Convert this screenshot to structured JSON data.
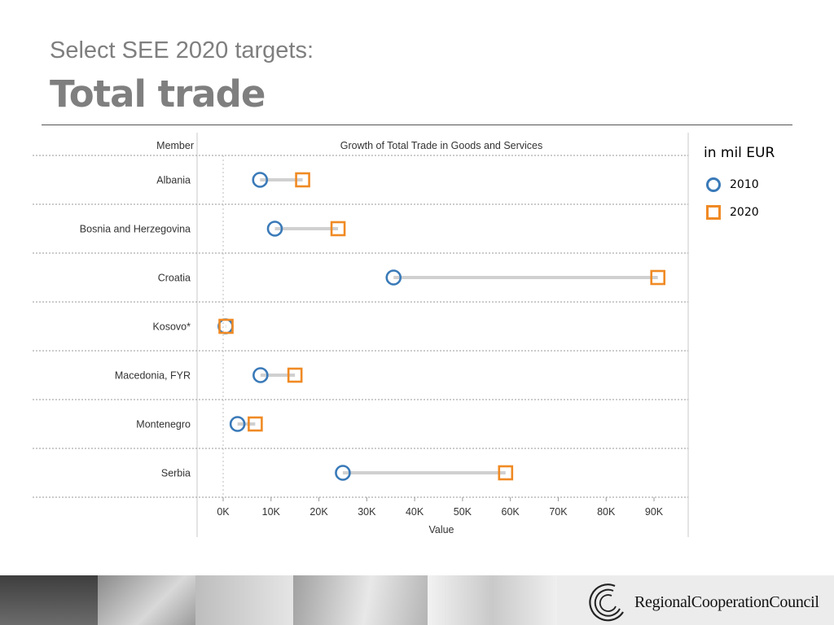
{
  "slide": {
    "subtitle": "Select SEE 2020 targets:",
    "title": "Total trade"
  },
  "chart_data": {
    "type": "dumbbell",
    "title": "Growth of Total Trade in Goods and Services",
    "row_header": "Member",
    "xlabel": "Value",
    "xlim": [
      0,
      90000
    ],
    "x_ticks": [
      0,
      10000,
      20000,
      30000,
      40000,
      50000,
      60000,
      70000,
      80000,
      90000
    ],
    "x_tick_labels": [
      "0K",
      "10K",
      "20K",
      "30K",
      "40K",
      "50K",
      "60K",
      "70K",
      "80K",
      "90K"
    ],
    "categories": [
      "Albania",
      "Bosnia and Herzegovina",
      "Croatia",
      "Kosovo*",
      "Macedonia, FYR",
      "Montenegro",
      "Serbia"
    ],
    "series": [
      {
        "name": "2010",
        "marker": "circle",
        "color": "#3a7ab8",
        "values": [
          7700,
          10800,
          35600,
          500,
          7800,
          3000,
          25000
        ]
      },
      {
        "name": "2020",
        "marker": "square",
        "color": "#f08a24",
        "values": [
          16600,
          24000,
          90800,
          600,
          15000,
          6700,
          59000
        ]
      }
    ],
    "connector_color": "#d0d0d0",
    "grid": true,
    "legend_position": "right",
    "legend_title": "in mil EUR"
  },
  "footer": {
    "logo_text": "RegionalCooperationCouncil"
  }
}
